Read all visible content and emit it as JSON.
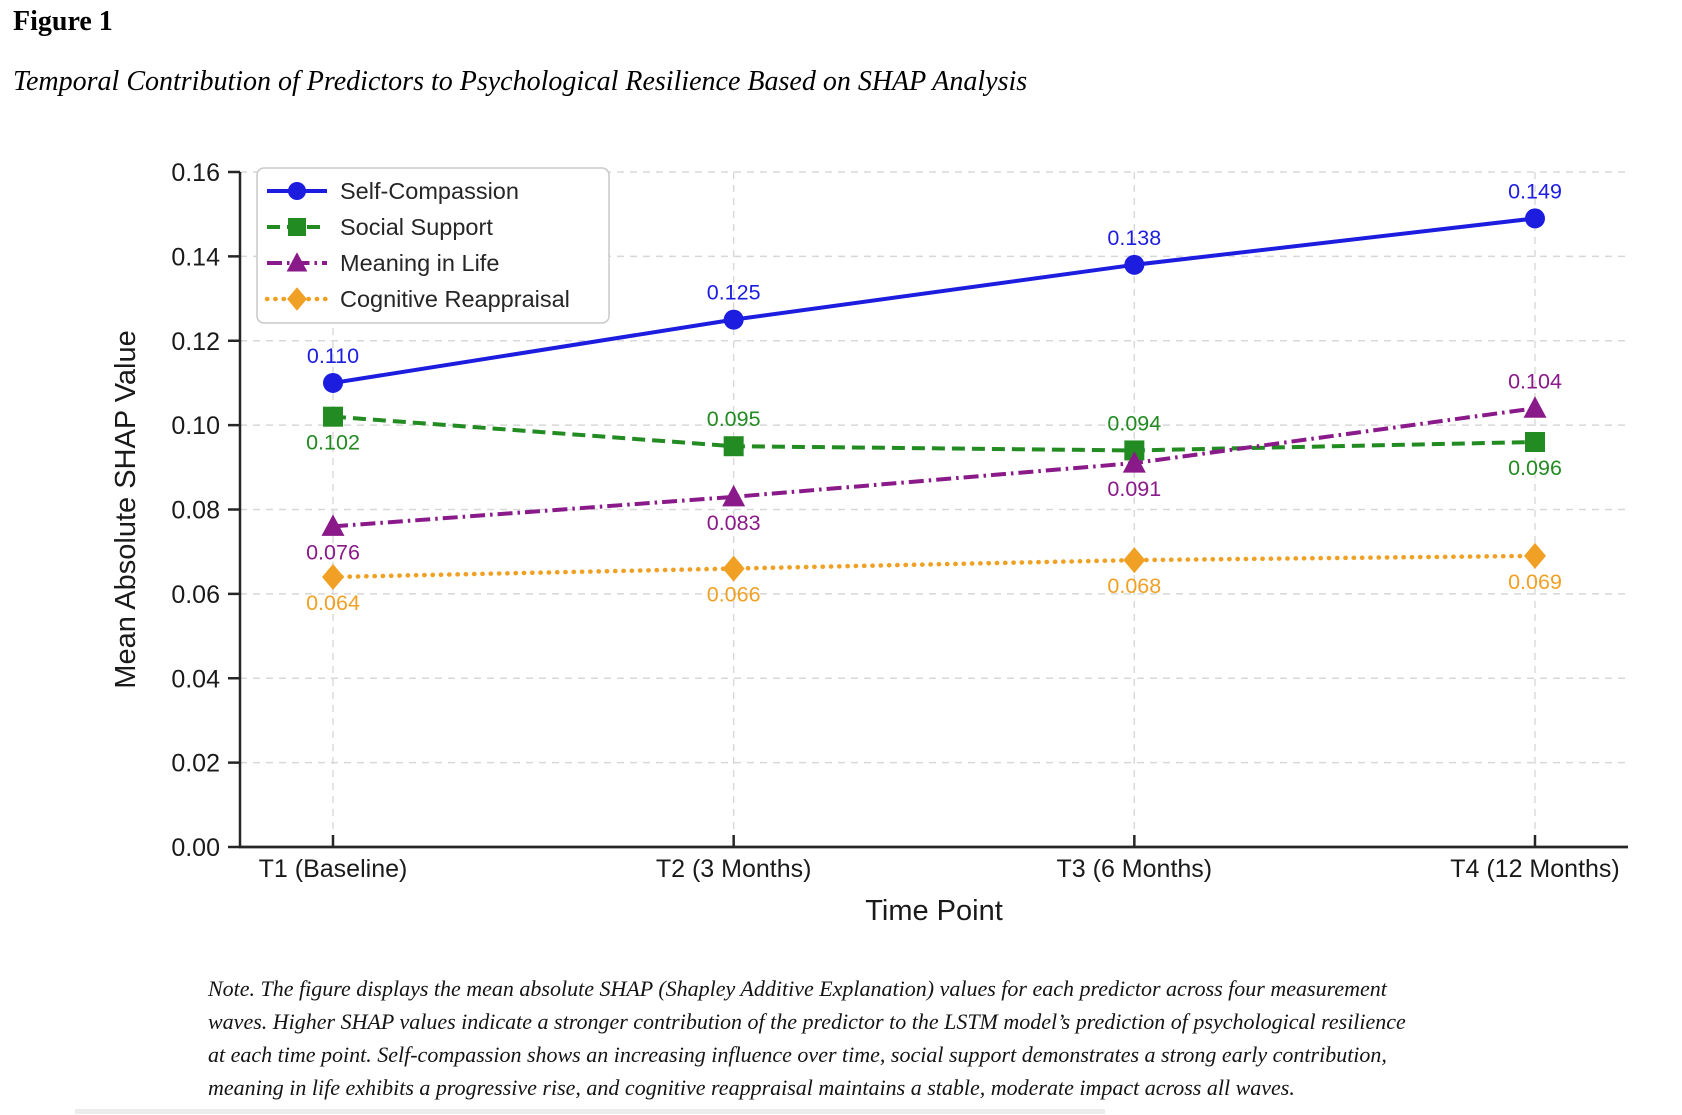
{
  "figure": {
    "label": "Figure 1",
    "caption": "Temporal Contribution of Predictors to Psychological Resilience Based on SHAP Analysis"
  },
  "chart_data": {
    "type": "line",
    "title": "",
    "xlabel": "Time Point",
    "ylabel": "Mean Absolute SHAP Value",
    "categories": [
      "T1 (Baseline)",
      "T2 (3 Months)",
      "T3 (6 Months)",
      "T4 (12 Months)"
    ],
    "ylim": [
      0.0,
      0.16
    ],
    "ytick_step": 0.02,
    "ytick_labels": [
      "0.00",
      "0.02",
      "0.04",
      "0.06",
      "0.08",
      "0.10",
      "0.12",
      "0.14",
      "0.16"
    ],
    "grid": true,
    "legend_position": "upper-left",
    "colors": {
      "axis": "#262626",
      "grid": "#d8d8d8",
      "tick_text": "#1a1a1a",
      "legend_border": "#c9c9c9",
      "legend_text": "#262626"
    },
    "series": [
      {
        "name": "Self-Compassion",
        "color": "#1d1de0",
        "marker": "circle",
        "line_style": "solid",
        "values": [
          0.11,
          0.125,
          0.138,
          0.149
        ],
        "labels": [
          "0.110",
          "0.125",
          "0.138",
          "0.149"
        ],
        "label_positions": [
          "above",
          "above",
          "above",
          "above"
        ]
      },
      {
        "name": "Social Support",
        "color": "#228b22",
        "marker": "square",
        "line_style": "dashed",
        "values": [
          0.102,
          0.095,
          0.094,
          0.096
        ],
        "labels": [
          "0.102",
          "0.095",
          "0.094",
          "0.096"
        ],
        "label_positions": [
          "below",
          "above",
          "above",
          "below"
        ]
      },
      {
        "name": "Meaning in Life",
        "color": "#8a1a8a",
        "marker": "triangle",
        "line_style": "dashdot",
        "values": [
          0.076,
          0.083,
          0.091,
          0.104
        ],
        "labels": [
          "0.076",
          "0.083",
          "0.091",
          "0.104"
        ],
        "label_positions": [
          "below",
          "below",
          "below",
          "above"
        ]
      },
      {
        "name": "Cognitive Reappraisal",
        "color": "#f0a125",
        "marker": "diamond",
        "line_style": "dotted",
        "values": [
          0.064,
          0.066,
          0.068,
          0.069
        ],
        "labels": [
          "0.064",
          "0.066",
          "0.068",
          "0.069"
        ],
        "label_positions": [
          "below",
          "below",
          "below",
          "below"
        ]
      }
    ]
  },
  "note": {
    "lines": [
      "Note. The figure displays the mean absolute SHAP (Shapley Additive Explanation) values for each predictor across four measurement",
      "waves. Higher SHAP values indicate a stronger contribution of the predictor to the LSTM model’s prediction of psychological resilience",
      "at each time point. Self-compassion shows an increasing influence over time, social support demonstrates a strong early contribution,",
      "meaning in life exhibits a progressive rise, and cognitive reappraisal maintains a stable, moderate impact across all waves."
    ]
  }
}
